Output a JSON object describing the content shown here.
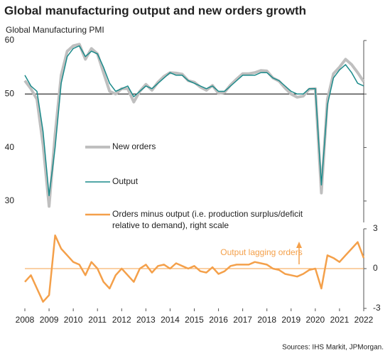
{
  "chart_data": [
    {
      "type": "line",
      "title": "Global manufacturing output and new orders growth",
      "y_label": "Global  Manufacturing  PMI",
      "x": [
        2008,
        2008.25,
        2008.5,
        2008.75,
        2009,
        2009.25,
        2009.5,
        2009.75,
        2010,
        2010.25,
        2010.5,
        2010.75,
        2011,
        2011.25,
        2011.5,
        2011.75,
        2012,
        2012.25,
        2012.5,
        2012.75,
        2013,
        2013.25,
        2013.5,
        2013.75,
        2014,
        2014.25,
        2014.5,
        2014.75,
        2015,
        2015.25,
        2015.5,
        2015.75,
        2016,
        2016.25,
        2016.5,
        2016.75,
        2017,
        2017.25,
        2017.5,
        2017.75,
        2018,
        2018.25,
        2018.5,
        2018.75,
        2019,
        2019.25,
        2019.5,
        2019.75,
        2020,
        2020.25,
        2020.5,
        2020.75,
        2021,
        2021.25,
        2021.5,
        2021.75,
        2022
      ],
      "series": [
        {
          "name": "New orders",
          "color": "#bfbfbf",
          "values": [
            52.5,
            51,
            49,
            40.5,
            29,
            42.5,
            53.5,
            58,
            59,
            59.3,
            56.5,
            58.5,
            57.5,
            54,
            50.5,
            50,
            51,
            51,
            48.5,
            50.5,
            51.8,
            50.7,
            52.2,
            53.3,
            54,
            53.9,
            53.7,
            52.5,
            52.2,
            51.3,
            50.7,
            51.6,
            50.1,
            50.3,
            51.7,
            52.8,
            53.8,
            53.8,
            54,
            54.4,
            54.3,
            53,
            52.4,
            51.1,
            50,
            49.4,
            49.6,
            50.9,
            51,
            31.5,
            49,
            53.8,
            55,
            56.5,
            55.5,
            54,
            52.3
          ]
        },
        {
          "name": "Output",
          "color": "#1a8a8a",
          "values": [
            53.5,
            51.5,
            50.5,
            43,
            31,
            40,
            52,
            57,
            58.5,
            59,
            57,
            58,
            57.5,
            55,
            52,
            50.5,
            51,
            51.5,
            49.5,
            50.5,
            51.5,
            51,
            52,
            53,
            54,
            53.5,
            53.5,
            52.5,
            52,
            51.5,
            51,
            51.5,
            50.5,
            50.5,
            51.5,
            52.5,
            53.5,
            53.5,
            53.5,
            54,
            54,
            53,
            52.5,
            51.5,
            50.5,
            50,
            50,
            51,
            51,
            33,
            48,
            53,
            54.5,
            55.5,
            54,
            52,
            51.5
          ]
        }
      ],
      "xlim": [
        2008,
        2022
      ],
      "ylim": [
        26,
        60
      ],
      "yticks": [
        30,
        40,
        50,
        60
      ],
      "reference_line": 50
    },
    {
      "type": "line",
      "x": [
        2008,
        2008.25,
        2008.5,
        2008.75,
        2009,
        2009.25,
        2009.5,
        2009.75,
        2010,
        2010.25,
        2010.5,
        2010.75,
        2011,
        2011.25,
        2011.5,
        2011.75,
        2012,
        2012.25,
        2012.5,
        2012.75,
        2013,
        2013.25,
        2013.5,
        2013.75,
        2014,
        2014.25,
        2014.5,
        2014.75,
        2015,
        2015.25,
        2015.5,
        2015.75,
        2016,
        2016.25,
        2016.5,
        2016.75,
        2017,
        2017.25,
        2017.5,
        2017.75,
        2018,
        2018.25,
        2018.5,
        2018.75,
        2019,
        2019.25,
        2019.5,
        2019.75,
        2020,
        2020.25,
        2020.5,
        2020.75,
        2021,
        2021.25,
        2021.5,
        2021.75,
        2022
      ],
      "series": [
        {
          "name": "Orders minus output (i.e. production surplus/deficit relative to demand), right scale",
          "color": "#f4a04a",
          "values": [
            -1,
            -0.5,
            -1.5,
            -2.5,
            -2,
            2.5,
            1.5,
            1,
            0.5,
            0.3,
            -0.5,
            0.5,
            0,
            -1,
            -1.5,
            -0.5,
            0,
            -0.5,
            -1,
            0,
            0.3,
            -0.3,
            0.2,
            0.3,
            0,
            0.4,
            0.2,
            0,
            0.2,
            -0.2,
            -0.3,
            0.1,
            -0.4,
            -0.2,
            0.2,
            0.3,
            0.3,
            0.3,
            0.5,
            0.4,
            0.3,
            0,
            -0.1,
            -0.4,
            -0.5,
            -0.6,
            -0.4,
            -0.1,
            0,
            -1.5,
            1,
            0.8,
            0.5,
            1,
            1.5,
            2,
            0.8
          ]
        }
      ],
      "xlim": [
        2008,
        2022
      ],
      "xticks": [
        2008,
        2009,
        2010,
        2011,
        2012,
        2013,
        2014,
        2015,
        2016,
        2017,
        2018,
        2019,
        2020,
        2021,
        2022
      ],
      "ylim": [
        -3,
        3
      ],
      "yticks": [
        -3,
        0,
        3
      ],
      "reference_line": 0,
      "annotation": "Output lagging orders",
      "source": "Sources: IHS Markit, JPMorgan."
    }
  ]
}
